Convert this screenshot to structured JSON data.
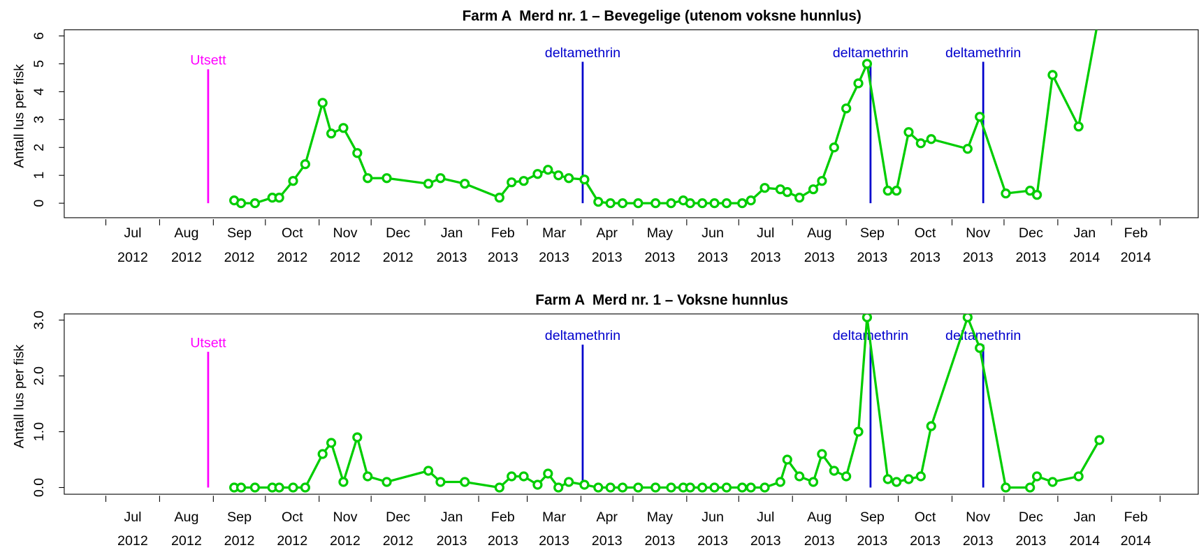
{
  "chart_data": [
    {
      "type": "line",
      "title": "Farm A  Merd nr. 1 – Bevegelige (utenom voksne hunnlus)",
      "ylabel": "Antall lus per fisk",
      "color": "#00cd00",
      "xlim": [
        "2012-06-07",
        "2014-03-23"
      ],
      "xticks": [
        "2012-07-01",
        "2012-08-01",
        "2012-09-01",
        "2012-10-01",
        "2012-11-01",
        "2012-12-01",
        "2013-01-01",
        "2013-02-01",
        "2013-03-01",
        "2013-04-01",
        "2013-05-01",
        "2013-06-01",
        "2013-07-01",
        "2013-08-01",
        "2013-09-01",
        "2013-10-01",
        "2013-11-01",
        "2013-12-01",
        "2014-01-01",
        "2014-02-01",
        "2014-03-01"
      ],
      "xlabels": [
        {
          "value": "2012-07",
          "label": [
            "Jul",
            "2012"
          ]
        },
        {
          "value": "2012-08",
          "label": [
            "Aug",
            "2012"
          ]
        },
        {
          "value": "2012-09",
          "label": [
            "Sep",
            "2012"
          ]
        },
        {
          "value": "2012-10",
          "label": [
            "Oct",
            "2012"
          ]
        },
        {
          "value": "2012-11",
          "label": [
            "Nov",
            "2012"
          ]
        },
        {
          "value": "2012-12",
          "label": [
            "Dec",
            "2012"
          ]
        },
        {
          "value": "2013-01",
          "label": [
            "Jan",
            "2013"
          ]
        },
        {
          "value": "2013-02",
          "label": [
            "Feb",
            "2013"
          ]
        },
        {
          "value": "2013-03",
          "label": [
            "Mar",
            "2013"
          ]
        },
        {
          "value": "2013-04",
          "label": [
            "Apr",
            "2013"
          ]
        },
        {
          "value": "2013-05",
          "label": [
            "May",
            "2013"
          ]
        },
        {
          "value": "2013-06",
          "label": [
            "Jun",
            "2013"
          ]
        },
        {
          "value": "2013-07",
          "label": [
            "Jul",
            "2013"
          ]
        },
        {
          "value": "2013-08",
          "label": [
            "Aug",
            "2013"
          ]
        },
        {
          "value": "2013-09",
          "label": [
            "Sep",
            "2013"
          ]
        },
        {
          "value": "2013-10",
          "label": [
            "Oct",
            "2013"
          ]
        },
        {
          "value": "2013-11",
          "label": [
            "Nov",
            "2013"
          ]
        },
        {
          "value": "2013-12",
          "label": [
            "Dec",
            "2013"
          ]
        },
        {
          "value": "2014-01",
          "label": [
            "Jan",
            "2014"
          ]
        },
        {
          "value": "2014-02",
          "label": [
            "Feb",
            "2014"
          ]
        }
      ],
      "ylim": [
        -0.52,
        6.22
      ],
      "yticks": [
        0,
        1,
        2,
        3,
        4,
        5,
        6
      ],
      "annotations": [
        {
          "label": "Utsett",
          "x": "2012-08-29",
          "color": "#ff00ff"
        },
        {
          "label": "deltamethrin",
          "x": "2013-04-02",
          "color": "#0000cd"
        },
        {
          "label": "deltamethrin",
          "x": "2013-09-15",
          "color": "#0000cd"
        },
        {
          "label": "deltamethrin",
          "x": "2013-11-19",
          "color": "#0000cd"
        }
      ],
      "x": [
        "2012-09-13",
        "2012-09-17",
        "2012-09-25",
        "2012-10-05",
        "2012-10-09",
        "2012-10-17",
        "2012-10-24",
        "2012-11-03",
        "2012-11-08",
        "2012-11-15",
        "2012-11-23",
        "2012-11-29",
        "2012-12-10",
        "2013-01-03",
        "2013-01-10",
        "2013-01-24",
        "2013-02-13",
        "2013-02-20",
        "2013-02-27",
        "2013-03-07",
        "2013-03-13",
        "2013-03-19",
        "2013-03-25",
        "2013-04-03",
        "2013-04-11",
        "2013-04-18",
        "2013-04-25",
        "2013-05-04",
        "2013-05-14",
        "2013-05-23",
        "2013-05-30",
        "2013-06-03",
        "2013-06-10",
        "2013-06-17",
        "2013-06-24",
        "2013-07-03",
        "2013-07-08",
        "2013-07-16",
        "2013-07-25",
        "2013-07-29",
        "2013-08-05",
        "2013-08-13",
        "2013-08-18",
        "2013-08-25",
        "2013-09-01",
        "2013-09-08",
        "2013-09-13",
        "2013-09-25",
        "2013-09-30",
        "2013-10-07",
        "2013-10-14",
        "2013-10-20",
        "2013-11-10",
        "2013-11-17",
        "2013-12-02",
        "2013-12-16",
        "2013-12-20",
        "2013-12-29",
        "2014-01-13",
        "2014-01-25"
      ],
      "values": [
        0.1,
        0,
        0,
        0.2,
        0.2,
        0.8,
        1.4,
        3.6,
        2.5,
        2.7,
        1.8,
        0.9,
        0.9,
        0.7,
        0.9,
        0.7,
        0.2,
        0.75,
        0.8,
        1.05,
        1.2,
        1.0,
        0.9,
        0.85,
        0.05,
        0,
        0,
        0,
        0,
        0,
        0.1,
        0,
        0,
        0,
        0,
        0,
        0.1,
        0.55,
        0.5,
        0.4,
        0.2,
        0.5,
        0.8,
        2.0,
        3.4,
        4.3,
        5.0,
        0.45,
        0.45,
        2.55,
        2.15,
        2.3,
        1.95,
        3.1,
        0.35,
        0.45,
        0.3,
        4.6,
        2.75,
        6.8
      ]
    },
    {
      "type": "line",
      "title": "Farm A  Merd nr. 1 – Voksne hunnlus",
      "ylabel": "Antall lus per fisk",
      "color": "#00cd00",
      "xlim": [
        "2012-06-07",
        "2014-03-23"
      ],
      "xticks": [
        "2012-07-01",
        "2012-08-01",
        "2012-09-01",
        "2012-10-01",
        "2012-11-01",
        "2012-12-01",
        "2013-01-01",
        "2013-02-01",
        "2013-03-01",
        "2013-04-01",
        "2013-05-01",
        "2013-06-01",
        "2013-07-01",
        "2013-08-01",
        "2013-09-01",
        "2013-10-01",
        "2013-11-01",
        "2013-12-01",
        "2014-01-01",
        "2014-02-01",
        "2014-03-01"
      ],
      "xlabels": [
        {
          "value": "2012-07",
          "label": [
            "Jul",
            "2012"
          ]
        },
        {
          "value": "2012-08",
          "label": [
            "Aug",
            "2012"
          ]
        },
        {
          "value": "2012-09",
          "label": [
            "Sep",
            "2012"
          ]
        },
        {
          "value": "2012-10",
          "label": [
            "Oct",
            "2012"
          ]
        },
        {
          "value": "2012-11",
          "label": [
            "Nov",
            "2012"
          ]
        },
        {
          "value": "2012-12",
          "label": [
            "Dec",
            "2012"
          ]
        },
        {
          "value": "2013-01",
          "label": [
            "Jan",
            "2013"
          ]
        },
        {
          "value": "2013-02",
          "label": [
            "Feb",
            "2013"
          ]
        },
        {
          "value": "2013-03",
          "label": [
            "Mar",
            "2013"
          ]
        },
        {
          "value": "2013-04",
          "label": [
            "Apr",
            "2013"
          ]
        },
        {
          "value": "2013-05",
          "label": [
            "May",
            "2013"
          ]
        },
        {
          "value": "2013-06",
          "label": [
            "Jun",
            "2013"
          ]
        },
        {
          "value": "2013-07",
          "label": [
            "Jul",
            "2013"
          ]
        },
        {
          "value": "2013-08",
          "label": [
            "Aug",
            "2013"
          ]
        },
        {
          "value": "2013-09",
          "label": [
            "Sep",
            "2013"
          ]
        },
        {
          "value": "2013-10",
          "label": [
            "Oct",
            "2013"
          ]
        },
        {
          "value": "2013-11",
          "label": [
            "Nov",
            "2013"
          ]
        },
        {
          "value": "2013-12",
          "label": [
            "Dec",
            "2013"
          ]
        },
        {
          "value": "2014-01",
          "label": [
            "Jan",
            "2014"
          ]
        },
        {
          "value": "2014-02",
          "label": [
            "Feb",
            "2014"
          ]
        }
      ],
      "ylim": [
        -0.12,
        3.11
      ],
      "yticks": [
        {
          "value": 0,
          "label": "0.0"
        },
        {
          "value": 1,
          "label": "1.0"
        },
        {
          "value": 2,
          "label": "2.0"
        },
        {
          "value": 3,
          "label": "3.0"
        }
      ],
      "annotations": [
        {
          "label": "Utsett",
          "x": "2012-08-29",
          "color": "#ff00ff"
        },
        {
          "label": "deltamethrin",
          "x": "2013-04-02",
          "color": "#0000cd"
        },
        {
          "label": "deltamethrin",
          "x": "2013-09-15",
          "color": "#0000cd"
        },
        {
          "label": "deltamethrin",
          "x": "2013-11-19",
          "color": "#0000cd"
        }
      ],
      "x": [
        "2012-09-13",
        "2012-09-17",
        "2012-09-25",
        "2012-10-05",
        "2012-10-09",
        "2012-10-17",
        "2012-10-24",
        "2012-11-03",
        "2012-11-08",
        "2012-11-15",
        "2012-11-23",
        "2012-11-29",
        "2012-12-10",
        "2013-01-03",
        "2013-01-10",
        "2013-01-24",
        "2013-02-13",
        "2013-02-20",
        "2013-02-27",
        "2013-03-07",
        "2013-03-13",
        "2013-03-19",
        "2013-03-25",
        "2013-04-03",
        "2013-04-11",
        "2013-04-18",
        "2013-04-25",
        "2013-05-04",
        "2013-05-14",
        "2013-05-23",
        "2013-05-30",
        "2013-06-03",
        "2013-06-10",
        "2013-06-17",
        "2013-06-24",
        "2013-07-03",
        "2013-07-08",
        "2013-07-16",
        "2013-07-25",
        "2013-07-29",
        "2013-08-05",
        "2013-08-13",
        "2013-08-18",
        "2013-08-25",
        "2013-09-01",
        "2013-09-08",
        "2013-09-13",
        "2013-09-25",
        "2013-09-30",
        "2013-10-07",
        "2013-10-14",
        "2013-10-20",
        "2013-11-10",
        "2013-11-17",
        "2013-12-02",
        "2013-12-16",
        "2013-12-20",
        "2013-12-29",
        "2014-01-13",
        "2014-01-25"
      ],
      "values": [
        0,
        0,
        0,
        0,
        0,
        0,
        0,
        0.6,
        0.8,
        0.1,
        0.9,
        0.2,
        0.1,
        0.3,
        0.1,
        0.1,
        0,
        0.2,
        0.2,
        0.05,
        0.25,
        0,
        0.1,
        0.05,
        0,
        0,
        0,
        0,
        0,
        0,
        0,
        0,
        0,
        0,
        0,
        0,
        0,
        0,
        0.1,
        0.5,
        0.2,
        0.1,
        0.6,
        0.3,
        0.2,
        1.0,
        3.05,
        0.15,
        0.1,
        0.15,
        0.2,
        1.1,
        3.05,
        2.5,
        0,
        0,
        0.2,
        0.1,
        0.2,
        0.85
      ]
    }
  ]
}
